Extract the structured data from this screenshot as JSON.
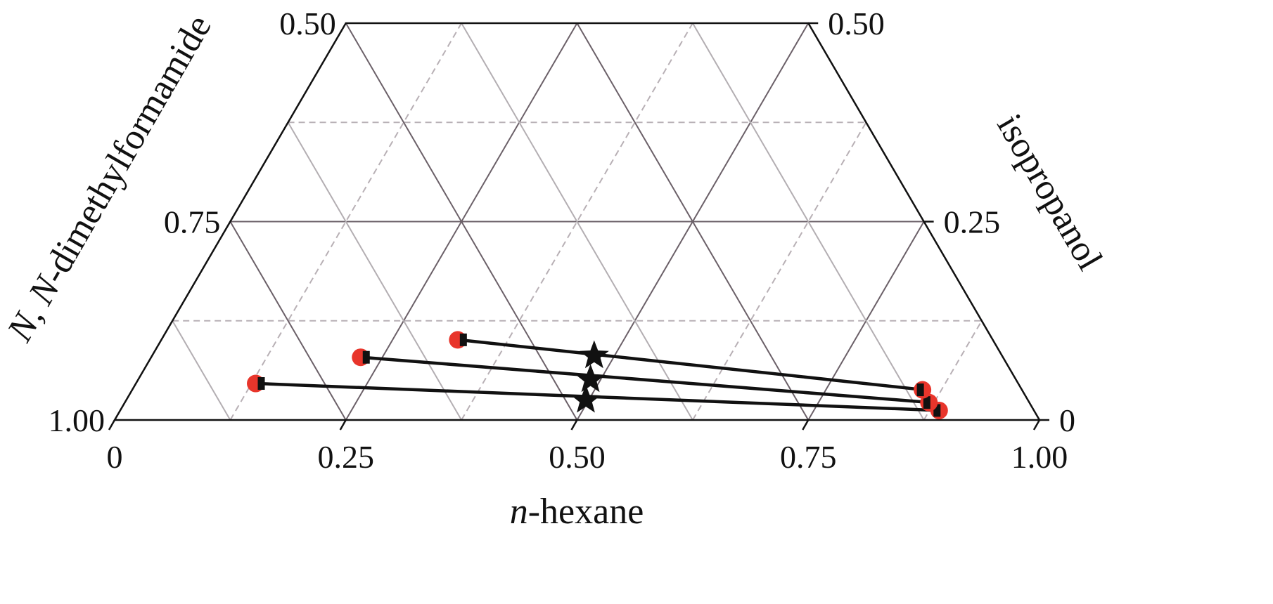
{
  "chart_data": {
    "type": "scatter",
    "subtype": "ternary-truncated",
    "title": "",
    "colors": {
      "grid_solid": "#6b6068",
      "grid_light": "#b3aeb2",
      "grid_dashed": "#b8b0b5",
      "frame": "#111111",
      "tie_line": "#111111",
      "experimental_marker": "#e8352b",
      "calculated_marker": "#111111",
      "feed_marker": "#111111"
    },
    "axes": {
      "bottom": {
        "label_prefix": "n",
        "label_suffix": "-hexane",
        "range": [
          0,
          1
        ],
        "ticks": [
          {
            "value": 0,
            "label": "0"
          },
          {
            "value": 0.25,
            "label": "0.25"
          },
          {
            "value": 0.5,
            "label": "0.50"
          },
          {
            "value": 0.75,
            "label": "0.75"
          },
          {
            "value": 1,
            "label": "1.00"
          }
        ]
      },
      "right": {
        "label": "isopropanol",
        "range": [
          0,
          0.5
        ],
        "ticks": [
          {
            "value": 0,
            "label": "0"
          },
          {
            "value": 0.25,
            "label": "0.25"
          },
          {
            "value": 0.5,
            "label": "0.50"
          }
        ]
      },
      "left": {
        "label_part1": "N",
        "label_part2": ", ",
        "label_part3": "N",
        "label_part4": "-dimethylformamide",
        "range": [
          0.5,
          1
        ],
        "ticks": [
          {
            "value": 1,
            "label": "1.00"
          },
          {
            "value": 0.75,
            "label": "0.75"
          },
          {
            "value": 0.5,
            "label": "0.50"
          }
        ]
      }
    },
    "grid": true,
    "series": [
      {
        "kind": "tie-line",
        "points": [
          {
            "n_hexane": 0.131,
            "isopropanol": 0.046
          },
          {
            "n_hexane": 0.887,
            "isopropanol": 0.012
          }
        ],
        "feed": {
          "n_hexane": 0.497,
          "isopropanol": 0.025
        }
      },
      {
        "kind": "tie-line",
        "points": [
          {
            "n_hexane": 0.228,
            "isopropanol": 0.079
          },
          {
            "n_hexane": 0.871,
            "isopropanol": 0.022
          }
        ],
        "feed": {
          "n_hexane": 0.489,
          "isopropanol": 0.051
        }
      },
      {
        "kind": "tie-line",
        "points": [
          {
            "n_hexane": 0.322,
            "isopropanol": 0.101
          },
          {
            "n_hexane": 0.856,
            "isopropanol": 0.038
          }
        ],
        "feed": {
          "n_hexane": 0.478,
          "isopropanol": 0.081
        }
      }
    ]
  }
}
